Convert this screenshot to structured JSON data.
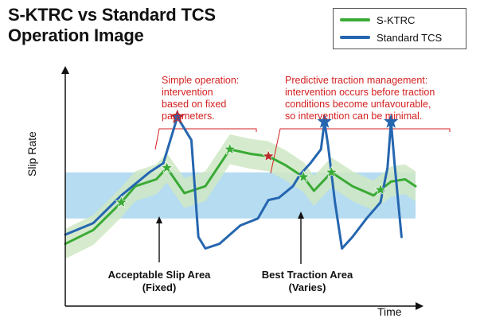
{
  "title_line1": "S-KTRC vs Standard TCS",
  "title_line2": "Operation Image",
  "chart_data": {
    "type": "line",
    "title": "S-KTRC vs Standard TCS Operation Image",
    "xlabel": "Time",
    "ylabel": "Slip Rate",
    "legend_position": "top-right",
    "grid": false,
    "series": [
      {
        "name": "S-KTRC",
        "color": "#3aaa35",
        "band_color": "#cfe8c4",
        "x": [
          0.0,
          0.08,
          0.16,
          0.2,
          0.26,
          0.29,
          0.34,
          0.4,
          0.47,
          0.53,
          0.58,
          0.63,
          0.68,
          0.71,
          0.76,
          0.82,
          0.88,
          0.93,
          0.97,
          1.0
        ],
        "y": [
          0.27,
          0.33,
          0.45,
          0.52,
          0.55,
          0.6,
          0.49,
          0.52,
          0.68,
          0.66,
          0.65,
          0.61,
          0.56,
          0.5,
          0.58,
          0.52,
          0.48,
          0.54,
          0.55,
          0.52
        ]
      },
      {
        "name": "Standard TCS",
        "color": "#2566b0",
        "x": [
          0.0,
          0.08,
          0.16,
          0.2,
          0.24,
          0.28,
          0.32,
          0.36,
          0.38,
          0.4,
          0.44,
          0.5,
          0.55,
          0.58,
          0.61,
          0.65,
          0.67,
          0.7,
          0.73,
          0.74,
          0.75,
          0.77,
          0.79,
          0.82,
          0.86,
          0.9,
          0.92,
          0.93,
          0.94,
          0.96
        ],
        "y": [
          0.31,
          0.36,
          0.48,
          0.53,
          0.58,
          0.62,
          0.82,
          0.72,
          0.3,
          0.25,
          0.27,
          0.35,
          0.38,
          0.46,
          0.47,
          0.52,
          0.57,
          0.62,
          0.68,
          0.8,
          0.7,
          0.45,
          0.25,
          0.3,
          0.38,
          0.45,
          0.6,
          0.8,
          0.62,
          0.3
        ]
      }
    ],
    "peaks": [
      {
        "x": 0.32,
        "y": 0.82,
        "color": "#c0282d",
        "fill": "#2566b0"
      },
      {
        "x": 0.74,
        "y": 0.8,
        "color": "#2566b0",
        "fill": "#2566b0"
      },
      {
        "x": 0.93,
        "y": 0.8,
        "color": "#2566b0",
        "fill": "#2566b0"
      }
    ],
    "skrtc_stars_x": [
      0.16,
      0.29,
      0.47,
      0.58,
      0.68,
      0.76,
      0.9
    ],
    "acceptable_band": {
      "ymin": 0.38,
      "ymax": 0.58,
      "color": "#b6dcf2"
    },
    "annotations": [
      {
        "lines": [
          "Simple operation:",
          "intervention",
          "based on fixed",
          "parameters."
        ]
      },
      {
        "lines": [
          "Predictive traction management:",
          "intervention occurs before traction",
          "conditions become unfavourable,",
          "so intervention can be minimal."
        ]
      }
    ],
    "area_labels": [
      {
        "lines": [
          "Acceptable Slip Area",
          "(Fixed)"
        ]
      },
      {
        "lines": [
          "Best Traction Area",
          "(Varies)"
        ]
      }
    ]
  }
}
